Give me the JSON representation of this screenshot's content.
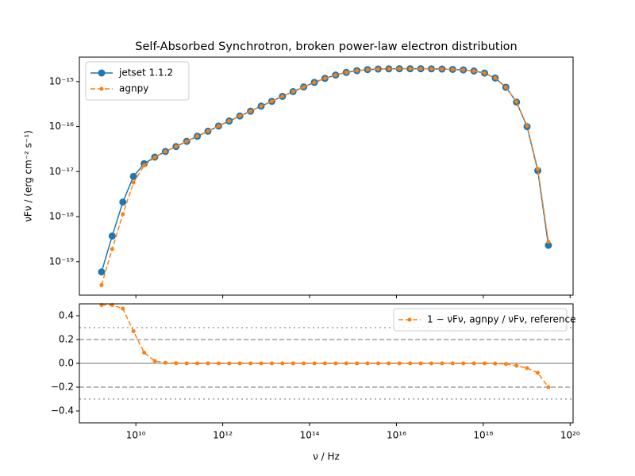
{
  "chart_data": [
    {
      "type": "line",
      "title": "Self-Absorbed Synchrotron, broken power-law electron distribution",
      "y_label": "νFν / (erg cm⁻² s⁻¹)",
      "xscale": "log",
      "yscale": "log",
      "xlim": [
        500000000.0,
        1.17e+20
      ],
      "ylim": [
        1.8e-20,
        3.5e-15
      ],
      "yticks": [
        {
          "value": 1e-19,
          "label": "10⁻¹⁹"
        },
        {
          "value": 1e-18,
          "label": "10⁻¹⁸"
        },
        {
          "value": 1e-17,
          "label": "10⁻¹⁷"
        },
        {
          "value": 1e-16,
          "label": "10⁻¹⁶"
        },
        {
          "value": 1e-15,
          "label": "10⁻¹⁵"
        }
      ],
      "legend": "upper left",
      "x": [
        1620000000.0,
        2850000000.0,
        5010000000.0,
        8810000000.0,
        15500000000.0,
        27200000000.0,
        47900000000.0,
        84100000000.0,
        148000000000.0,
        260000000000.0,
        457000000000.0,
        804000000000.0,
        1410000000000.0,
        2480000000000.0,
        4370000000000.0,
        7670000000000.0,
        13500000000000.0,
        23700000000000.0,
        41700000000000.0,
        73300000000000.0,
        129000000000000.0,
        226000000000000.0,
        398000000000000.0,
        700000000000000.0,
        1230000000000000.0,
        2160000000000000.0,
        3800000000000000.0,
        6680000000000000.0,
        1.17e+16,
        2.07e+16,
        3.63e+16,
        6.38e+16,
        1.12e+17,
        1.97e+17,
        3.47e+17,
        6.1e+17,
        1.07e+18,
        1.88e+18,
        3.31e+18,
        5.82e+18,
        1.02e+19,
        1.8e+19,
        3.16e+19
      ],
      "series": [
        {
          "name": "jetset 1.1.2",
          "color": "#1f77b4",
          "linestyle": "solid",
          "marker": "o",
          "values": [
            5.9e-20,
            3.7e-19,
            2.1e-18,
            7.8e-18,
            1.5e-17,
            2.1e-17,
            2.8e-17,
            3.6e-17,
            4.7e-17,
            6.1e-17,
            7.9e-17,
            1.03e-16,
            1.33e-16,
            1.72e-16,
            2.2e-16,
            2.85e-16,
            3.65e-16,
            4.7e-16,
            6e-16,
            7.6e-16,
            9.6e-16,
            1.18e-15,
            1.4e-15,
            1.6e-15,
            1.75e-15,
            1.85e-15,
            1.9e-15,
            1.92e-15,
            1.93e-15,
            1.93e-15,
            1.93e-15,
            1.92e-15,
            1.9e-15,
            1.87e-15,
            1.82e-15,
            1.72e-15,
            1.55e-15,
            1.2e-15,
            7.5e-16,
            3.5e-16,
            1e-16,
            1.05e-17,
            2.3e-19
          ]
        },
        {
          "name": "agnpy",
          "color": "#ff7f0e",
          "linestyle": "dashed",
          "marker": ".",
          "values": [
            3e-20,
            1.9e-19,
            1.13e-18,
            5.7e-18,
            1.37e-17,
            2.06e-17,
            2.79e-17,
            3.6e-17,
            4.7e-17,
            6.1e-17,
            7.9e-17,
            1.03e-16,
            1.33e-16,
            1.72e-16,
            2.2e-16,
            2.85e-16,
            3.65e-16,
            4.7e-16,
            6e-16,
            7.6e-16,
            9.6e-16,
            1.18e-15,
            1.4e-15,
            1.6e-15,
            1.75e-15,
            1.85e-15,
            1.9e-15,
            1.92e-15,
            1.93e-15,
            1.93e-15,
            1.93e-15,
            1.92e-15,
            1.9e-15,
            1.87e-15,
            1.82e-15,
            1.72e-15,
            1.55e-15,
            1.2e-15,
            7.54e-16,
            3.57e-16,
            1.04e-16,
            1.13e-17,
            2.76e-19
          ]
        }
      ]
    },
    {
      "type": "line",
      "x_label": "ν / Hz",
      "xscale": "log",
      "yscale": "linear",
      "xlim": [
        500000000.0,
        1.17e+20
      ],
      "xticks": [
        {
          "value": 10000000000.0,
          "label": "10¹⁰"
        },
        {
          "value": 1000000000000.0,
          "label": "10¹²"
        },
        {
          "value": 100000000000000.0,
          "label": "10¹⁴"
        },
        {
          "value": 1e+16,
          "label": "10¹⁶"
        },
        {
          "value": 1e+18,
          "label": "10¹⁸"
        },
        {
          "value": 1e+20,
          "label": "10²⁰"
        }
      ],
      "ylim": [
        -0.5,
        0.5
      ],
      "yticks": [
        {
          "value": -0.4,
          "label": "−0.4"
        },
        {
          "value": -0.2,
          "label": "−0.2"
        },
        {
          "value": 0,
          "label": "0.0"
        },
        0.2,
        0.4
      ],
      "hlines": [
        {
          "value": 0,
          "style": "solid"
        },
        {
          "value": 0.2,
          "style": "dashed"
        },
        {
          "value": -0.2,
          "style": "dashed"
        },
        {
          "value": 0.3,
          "style": "dotted"
        },
        {
          "value": -0.3,
          "style": "dotted"
        }
      ],
      "legend": "upper right",
      "x": [
        1620000000.0,
        2850000000.0,
        5010000000.0,
        8810000000.0,
        15500000000.0,
        27200000000.0,
        47900000000.0,
        84100000000.0,
        148000000000.0,
        260000000000.0,
        457000000000.0,
        804000000000.0,
        1410000000000.0,
        2480000000000.0,
        4370000000000.0,
        7670000000000.0,
        13500000000000.0,
        23700000000000.0,
        41700000000000.0,
        73300000000000.0,
        129000000000000.0,
        226000000000000.0,
        398000000000000.0,
        700000000000000.0,
        1230000000000000.0,
        2160000000000000.0,
        3800000000000000.0,
        6680000000000000.0,
        1.17e+16,
        2.07e+16,
        3.63e+16,
        6.38e+16,
        1.12e+17,
        1.97e+17,
        3.47e+17,
        6.1e+17,
        1.07e+18,
        1.88e+18,
        3.31e+18,
        5.82e+18,
        1.02e+19,
        1.8e+19,
        3.16e+19
      ],
      "series": [
        {
          "name": "1 − νFν, agnpy / νFν, reference",
          "color": "#ff7f0e",
          "linestyle": "dashed",
          "marker": ".",
          "values": [
            0.49,
            0.49,
            0.46,
            0.27,
            0.09,
            0.02,
            0.005,
            0.002,
            0,
            0,
            0,
            0,
            0,
            0,
            0,
            0,
            0,
            0,
            0,
            0,
            0,
            0,
            0,
            0,
            0,
            0,
            0,
            0,
            0,
            0,
            0,
            0,
            0,
            0,
            0,
            0,
            0,
            -0.002,
            -0.005,
            -0.02,
            -0.04,
            -0.08,
            -0.2
          ]
        }
      ]
    }
  ]
}
